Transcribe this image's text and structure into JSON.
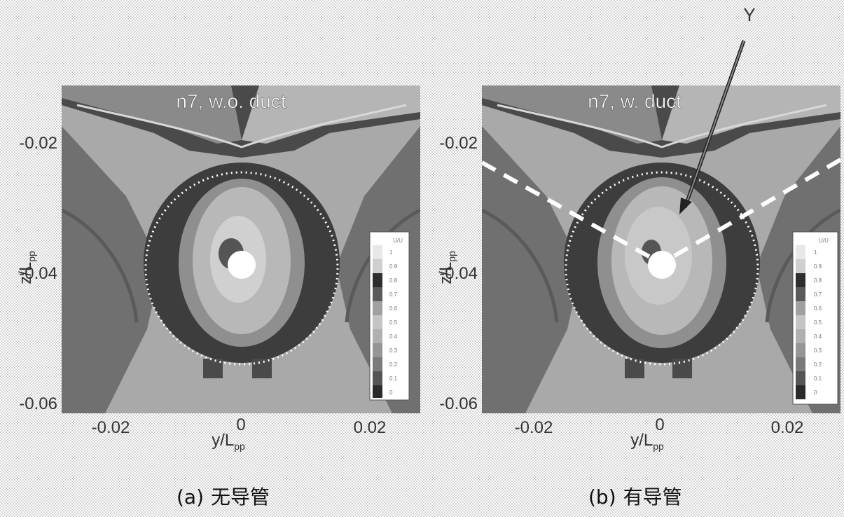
{
  "figure": {
    "annotation_label": "Y",
    "panels": [
      {
        "id": "a",
        "title": "n7, w.o. duct",
        "x_ticks": [
          "-0.02",
          "0",
          "0.02"
        ],
        "y_ticks": [
          "-0.02",
          "-0.04",
          "-0.06"
        ],
        "x_label_main": "y/L",
        "x_label_sub": "pp",
        "y_label_main": "z/L",
        "y_label_sub": "pp",
        "colorbar": {
          "title": "U/U",
          "labels": [
            "1",
            "0.9",
            "0.8",
            "0.7",
            "0.6",
            "0.5",
            "0.4",
            "0.3",
            "0.2",
            "0.1",
            "0"
          ]
        },
        "caption": {
          "prefix": "(a)",
          "text": "无导管"
        }
      },
      {
        "id": "b",
        "title": "n7, w. duct",
        "x_ticks": [
          "-0.02",
          "0",
          "0.02"
        ],
        "y_ticks": [
          "-0.02",
          "-0.04",
          "-0.06"
        ],
        "x_label_main": "y/L",
        "x_label_sub": "pp",
        "y_label_main": "z/L",
        "y_label_sub": "pp",
        "colorbar": {
          "title": "U/U",
          "labels": [
            "1",
            "0.9",
            "0.8",
            "0.7",
            "0.6",
            "0.5",
            "0.4",
            "0.3",
            "0.2",
            "0.1",
            "0"
          ]
        },
        "caption": {
          "prefix": "(b)",
          "text": "有导管"
        }
      }
    ]
  }
}
